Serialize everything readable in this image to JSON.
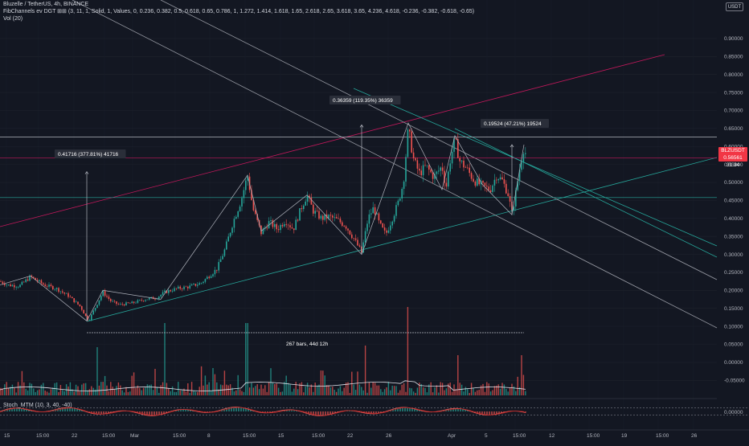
{
  "header": {
    "symbol_line": "Bluzelle / TetherUS, 4h, BINANCE",
    "fib_line": "FibChannels ev DGT ⊞⊞ (3, 11, 1, Solid, 1, Values, 0, 0.236, 0.382, 0.5, 0.618, 0.65, 0.786, 1, 1.272, 1.414, 1.618, 1.65, 2.618, 2.65, 3.618, 3.65, 4.236, 4.618, -0.236, -0.382, -0.618, -0.65)",
    "vol_line": "Vol (20)",
    "stoch_line": "Stoch_MTM (10, 3, 40, -40)"
  },
  "badges": {
    "currency": "USDT"
  },
  "price_tag": {
    "symbol": "BLZUSDT",
    "price": "0.56561",
    "countdown": "31:34"
  },
  "annotations": {
    "move_1": "0.41716 (377.81%) 41716",
    "move_2": "0.36359 (119.35%) 36359",
    "move_3": "0.19524 (47.21%) 19524",
    "range": "267 bars, 44d 12h"
  },
  "chart_data": {
    "type": "candlestick",
    "exchange": "BINANCE",
    "symbol": "Bluzelle / TetherUS",
    "interval": "4h",
    "price_axis_ticks": [
      "0.90000",
      "0.85000",
      "0.80000",
      "0.75000",
      "0.70000",
      "0.65000",
      "0.60000",
      "0.55000",
      "0.50000",
      "0.45000",
      "0.40000",
      "0.35000",
      "0.30000",
      "0.25000",
      "0.20000",
      "0.15000",
      "0.10000",
      "0.05000",
      "0.00000",
      "-0.05000"
    ],
    "price_range": [
      -0.065,
      0.94
    ],
    "stoch_axis_ticks": [
      "0.00000"
    ],
    "time_axis_ticks": [
      "15",
      "15:00",
      "22",
      "15:00",
      "Mar",
      "15:00",
      "8",
      "15:00",
      "15",
      "15:00",
      "22",
      "26",
      "Apr",
      "5",
      "15:00",
      "12",
      "15:00",
      "19",
      "15:00",
      "26"
    ],
    "last_price": 0.56561,
    "price_path": [
      [
        0,
        0.225
      ],
      [
        10,
        0.215
      ],
      [
        24,
        0.212
      ],
      [
        38,
        0.238
      ],
      [
        55,
        0.215
      ],
      [
        70,
        0.205
      ],
      [
        85,
        0.185
      ],
      [
        100,
        0.155
      ],
      [
        110,
        0.115
      ],
      [
        118,
        0.15
      ],
      [
        128,
        0.195
      ],
      [
        138,
        0.17
      ],
      [
        148,
        0.16
      ],
      [
        165,
        0.165
      ],
      [
        180,
        0.175
      ],
      [
        195,
        0.18
      ],
      [
        205,
        0.195
      ],
      [
        220,
        0.205
      ],
      [
        235,
        0.21
      ],
      [
        250,
        0.22
      ],
      [
        260,
        0.24
      ],
      [
        270,
        0.26
      ],
      [
        280,
        0.315
      ],
      [
        290,
        0.39
      ],
      [
        300,
        0.45
      ],
      [
        308,
        0.52
      ],
      [
        315,
        0.425
      ],
      [
        325,
        0.36
      ],
      [
        335,
        0.39
      ],
      [
        345,
        0.37
      ],
      [
        355,
        0.395
      ],
      [
        365,
        0.37
      ],
      [
        375,
        0.43
      ],
      [
        382,
        0.465
      ],
      [
        390,
        0.42
      ],
      [
        400,
        0.4
      ],
      [
        410,
        0.405
      ],
      [
        420,
        0.395
      ],
      [
        430,
        0.38
      ],
      [
        440,
        0.345
      ],
      [
        450,
        0.305
      ],
      [
        458,
        0.4
      ],
      [
        465,
        0.43
      ],
      [
        472,
        0.385
      ],
      [
        480,
        0.355
      ],
      [
        488,
        0.4
      ],
      [
        495,
        0.44
      ],
      [
        502,
        0.5
      ],
      [
        508,
        0.65
      ],
      [
        515,
        0.56
      ],
      [
        522,
        0.525
      ],
      [
        530,
        0.545
      ],
      [
        540,
        0.515
      ],
      [
        550,
        0.545
      ],
      [
        555,
        0.485
      ],
      [
        560,
        0.56
      ],
      [
        566,
        0.62
      ],
      [
        572,
        0.56
      ],
      [
        580,
        0.54
      ],
      [
        590,
        0.505
      ],
      [
        600,
        0.49
      ],
      [
        610,
        0.48
      ],
      [
        618,
        0.52
      ],
      [
        625,
        0.505
      ],
      [
        632,
        0.47
      ],
      [
        637,
        0.415
      ],
      [
        641,
        0.46
      ],
      [
        646,
        0.53
      ],
      [
        652,
        0.6
      ],
      [
        655,
        0.57
      ]
    ],
    "levels": [
      0.626,
      0.568,
      0.458
    ],
    "zigzag": [
      [
        0,
        0.215
      ],
      [
        38,
        0.24
      ],
      [
        108,
        0.115
      ],
      [
        128,
        0.2
      ],
      [
        200,
        0.175
      ],
      [
        308,
        0.52
      ],
      [
        325,
        0.365
      ],
      [
        382,
        0.465
      ],
      [
        450,
        0.3
      ],
      [
        508,
        0.665
      ],
      [
        550,
        0.48
      ],
      [
        566,
        0.63
      ],
      [
        600,
        0.495
      ],
      [
        637,
        0.41
      ],
      [
        652,
        0.605
      ]
    ],
    "stoch_range": [
      -0.04,
      0.04
    ]
  }
}
